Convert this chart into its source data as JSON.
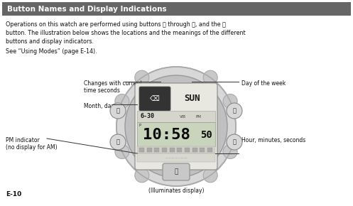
{
  "title": "Button Names and Display Indications",
  "title_bg": "#666666",
  "title_fg": "#ffffff",
  "body_text1": "Operations on this watch are performed using buttons Ⓐ through ⓓ, and the Ⓛ",
  "body_text2": "button. The illustration below shows the locations and the meanings of the different",
  "body_text3": "buttons and display indicators.",
  "see_text": "See “Using Modes” (page E-14).",
  "page_num": "E-10",
  "bg_color": "#ffffff",
  "text_color": "#111111",
  "label_changes": "Changes with current\ntime seconds",
  "label_month_day": "Month, day",
  "label_pm": "PM indicator\n(no display for AM)",
  "label_illuminates": "(Illuminates display)",
  "label_day_week": "Day of the week",
  "label_hour": "Hour, minutes, seconds",
  "font_size_title": 7.5,
  "font_size_body": 5.8,
  "font_size_label": 5.5,
  "font_size_page": 6.5
}
